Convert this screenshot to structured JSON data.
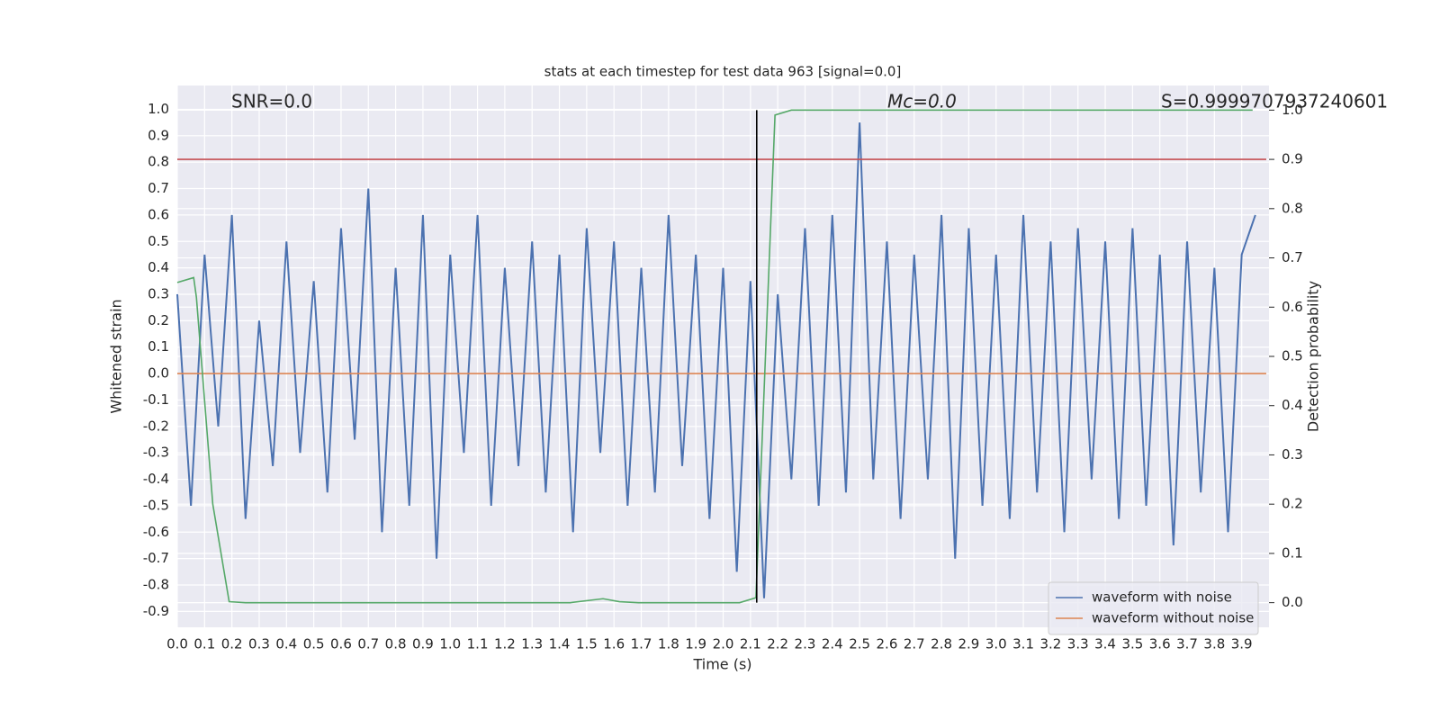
{
  "chart_data": {
    "type": "line",
    "title": "stats at each timestep for test data 963 [signal=0.0]",
    "xlabel": "Time (s)",
    "ylabel": "Whitened strain",
    "y2label": "Detection probability",
    "annotations": [
      "SNR=0.0",
      "Mc=0.0",
      "S=0.9999707937240601"
    ],
    "grid": true,
    "legend": "lower right",
    "xlim": [
      0,
      4.0
    ],
    "ylim": [
      -0.96,
      1.09
    ],
    "y2lim": [
      -0.05,
      1.05
    ],
    "xticks": [
      {
        "value": 0,
        "label": "0.0"
      },
      0.1,
      0.2,
      0.3,
      0.4,
      0.5,
      0.6,
      0.7,
      0.8,
      0.9,
      {
        "value": 1,
        "label": "1.0"
      },
      1.1,
      1.2,
      1.3,
      1.4,
      1.5,
      1.6,
      1.7,
      1.8,
      1.9,
      {
        "value": 2,
        "label": "2.0"
      },
      2.1,
      2.2,
      2.3,
      2.4,
      2.5,
      2.6,
      2.7,
      2.8,
      2.9,
      {
        "value": 3,
        "label": "3.0"
      },
      3.1,
      3.2,
      3.3,
      3.4,
      3.5,
      3.6,
      3.7,
      3.8,
      3.9
    ],
    "yticks": [
      -0.9,
      -0.8,
      -0.7,
      -0.6,
      -0.5,
      -0.4,
      -0.3,
      -0.2,
      -0.1,
      {
        "value": 0,
        "label": "0.0"
      },
      0.1,
      0.2,
      0.3,
      0.4,
      0.5,
      0.6,
      0.7,
      0.8,
      0.9,
      {
        "value": 1,
        "label": "1.0"
      }
    ],
    "y2ticks": [
      {
        "value": 0,
        "label": "0.0"
      },
      0.1,
      0.2,
      0.3,
      0.4,
      0.5,
      0.6,
      0.7,
      0.8,
      0.9,
      {
        "value": 1,
        "label": "1.0"
      }
    ],
    "series": [
      {
        "name": "waveform with noise",
        "color": "#4c72b0",
        "axis": "y",
        "x": [
          0.0,
          0.05,
          0.1,
          0.15,
          0.2,
          0.25,
          0.3,
          0.35,
          0.4,
          0.45,
          0.5,
          0.55,
          0.6,
          0.65,
          0.7,
          0.75,
          0.8,
          0.85,
          0.9,
          0.95,
          1.0,
          1.05,
          1.1,
          1.15,
          1.2,
          1.25,
          1.3,
          1.35,
          1.4,
          1.45,
          1.5,
          1.55,
          1.6,
          1.65,
          1.7,
          1.75,
          1.8,
          1.85,
          1.9,
          1.95,
          2.0,
          2.05,
          2.1,
          2.15,
          2.2,
          2.25,
          2.3,
          2.35,
          2.4,
          2.45,
          2.5,
          2.55,
          2.6,
          2.65,
          2.7,
          2.75,
          2.8,
          2.85,
          2.9,
          2.95,
          3.0,
          3.05,
          3.1,
          3.15,
          3.2,
          3.25,
          3.3,
          3.35,
          3.4,
          3.45,
          3.5,
          3.55,
          3.6,
          3.65,
          3.7,
          3.75,
          3.8,
          3.85,
          3.9,
          3.95
        ],
        "values": [
          0.3,
          -0.5,
          0.45,
          -0.2,
          0.6,
          -0.55,
          0.2,
          -0.35,
          0.5,
          -0.3,
          0.35,
          -0.45,
          0.55,
          -0.25,
          0.7,
          -0.6,
          0.4,
          -0.5,
          0.6,
          -0.7,
          0.45,
          -0.3,
          0.6,
          -0.5,
          0.4,
          -0.35,
          0.5,
          -0.45,
          0.45,
          -0.6,
          0.55,
          -0.3,
          0.5,
          -0.5,
          0.4,
          -0.45,
          0.6,
          -0.35,
          0.45,
          -0.55,
          0.4,
          -0.75,
          0.35,
          -0.85,
          0.3,
          -0.4,
          0.55,
          -0.5,
          0.6,
          -0.45,
          0.95,
          -0.4,
          0.5,
          -0.55,
          0.45,
          -0.4,
          0.6,
          -0.7,
          0.55,
          -0.5,
          0.45,
          -0.55,
          0.6,
          -0.45,
          0.5,
          -0.6,
          0.55,
          -0.4,
          0.5,
          -0.55,
          0.55,
          -0.5,
          0.45,
          -0.65,
          0.5,
          -0.45,
          0.4,
          -0.6,
          0.45,
          0.6
        ]
      },
      {
        "name": "waveform without noise",
        "color": "#dd8452",
        "axis": "y",
        "x": [
          0.0,
          3.99
        ],
        "values": [
          0,
          0
        ]
      },
      {
        "color": "#c44e52",
        "axis": "y2",
        "x": [
          0.0,
          3.99
        ],
        "values": [
          0.9,
          0.9
        ]
      },
      {
        "color": "#55a868",
        "axis": "y2",
        "x": [
          0.0,
          0.06,
          0.07,
          0.13,
          0.19,
          0.25,
          1.44,
          1.56,
          1.62,
          1.69,
          2.06,
          2.12,
          2.19,
          2.25,
          3.94
        ],
        "values": [
          0.65,
          0.66,
          0.62,
          0.2,
          0.002,
          0,
          0,
          0.008,
          0.002,
          0,
          0,
          0.01,
          0.99,
          1.0,
          1.0
        ]
      },
      {
        "color": "#000000",
        "axis": "y2",
        "x": [
          2.123,
          2.123
        ],
        "values": [
          1.0,
          0.0
        ]
      }
    ]
  }
}
